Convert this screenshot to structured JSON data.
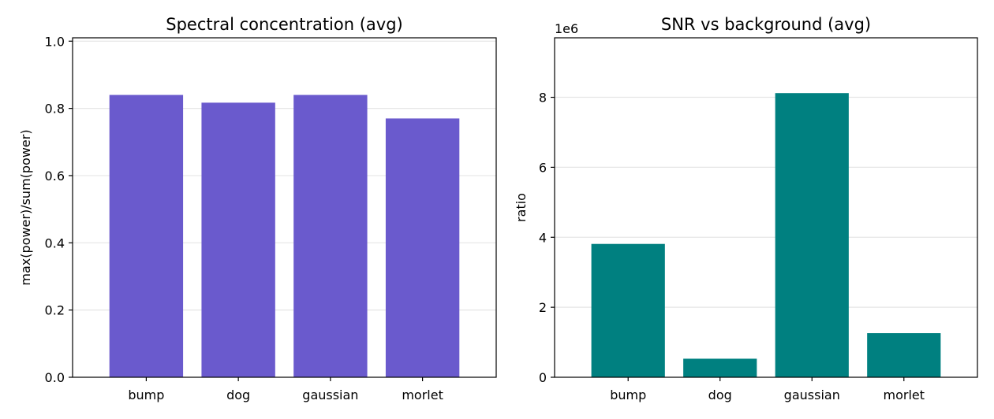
{
  "chart_data": [
    {
      "type": "bar",
      "title": "Spectral concentration (avg)",
      "xlabel": "",
      "ylabel": "max(power)/sum(power)",
      "categories": [
        "bump",
        "dog",
        "gaussian",
        "morlet"
      ],
      "values": [
        0.84,
        0.817,
        0.84,
        0.77
      ],
      "ylim": [
        0,
        1.01
      ],
      "yticks": [
        0.0,
        0.2,
        0.4,
        0.6,
        0.8,
        1.0
      ],
      "ytick_labels": [
        "0.0",
        "0.2",
        "0.4",
        "0.6",
        "0.8",
        "1.0"
      ],
      "offset_text": "",
      "grid": "y",
      "color": "#6a5acd"
    },
    {
      "type": "bar",
      "title": "SNR vs background (avg)",
      "xlabel": "",
      "ylabel": "ratio",
      "categories": [
        "bump",
        "dog",
        "gaussian",
        "morlet"
      ],
      "values": [
        3810000,
        530000,
        8120000,
        1260000
      ],
      "ylim": [
        0,
        9700000
      ],
      "yticks": [
        0,
        2000000,
        4000000,
        6000000,
        8000000
      ],
      "ytick_labels": [
        "0",
        "2",
        "4",
        "6",
        "8"
      ],
      "offset_text": "1e6",
      "grid": "y",
      "color": "#008080"
    }
  ]
}
